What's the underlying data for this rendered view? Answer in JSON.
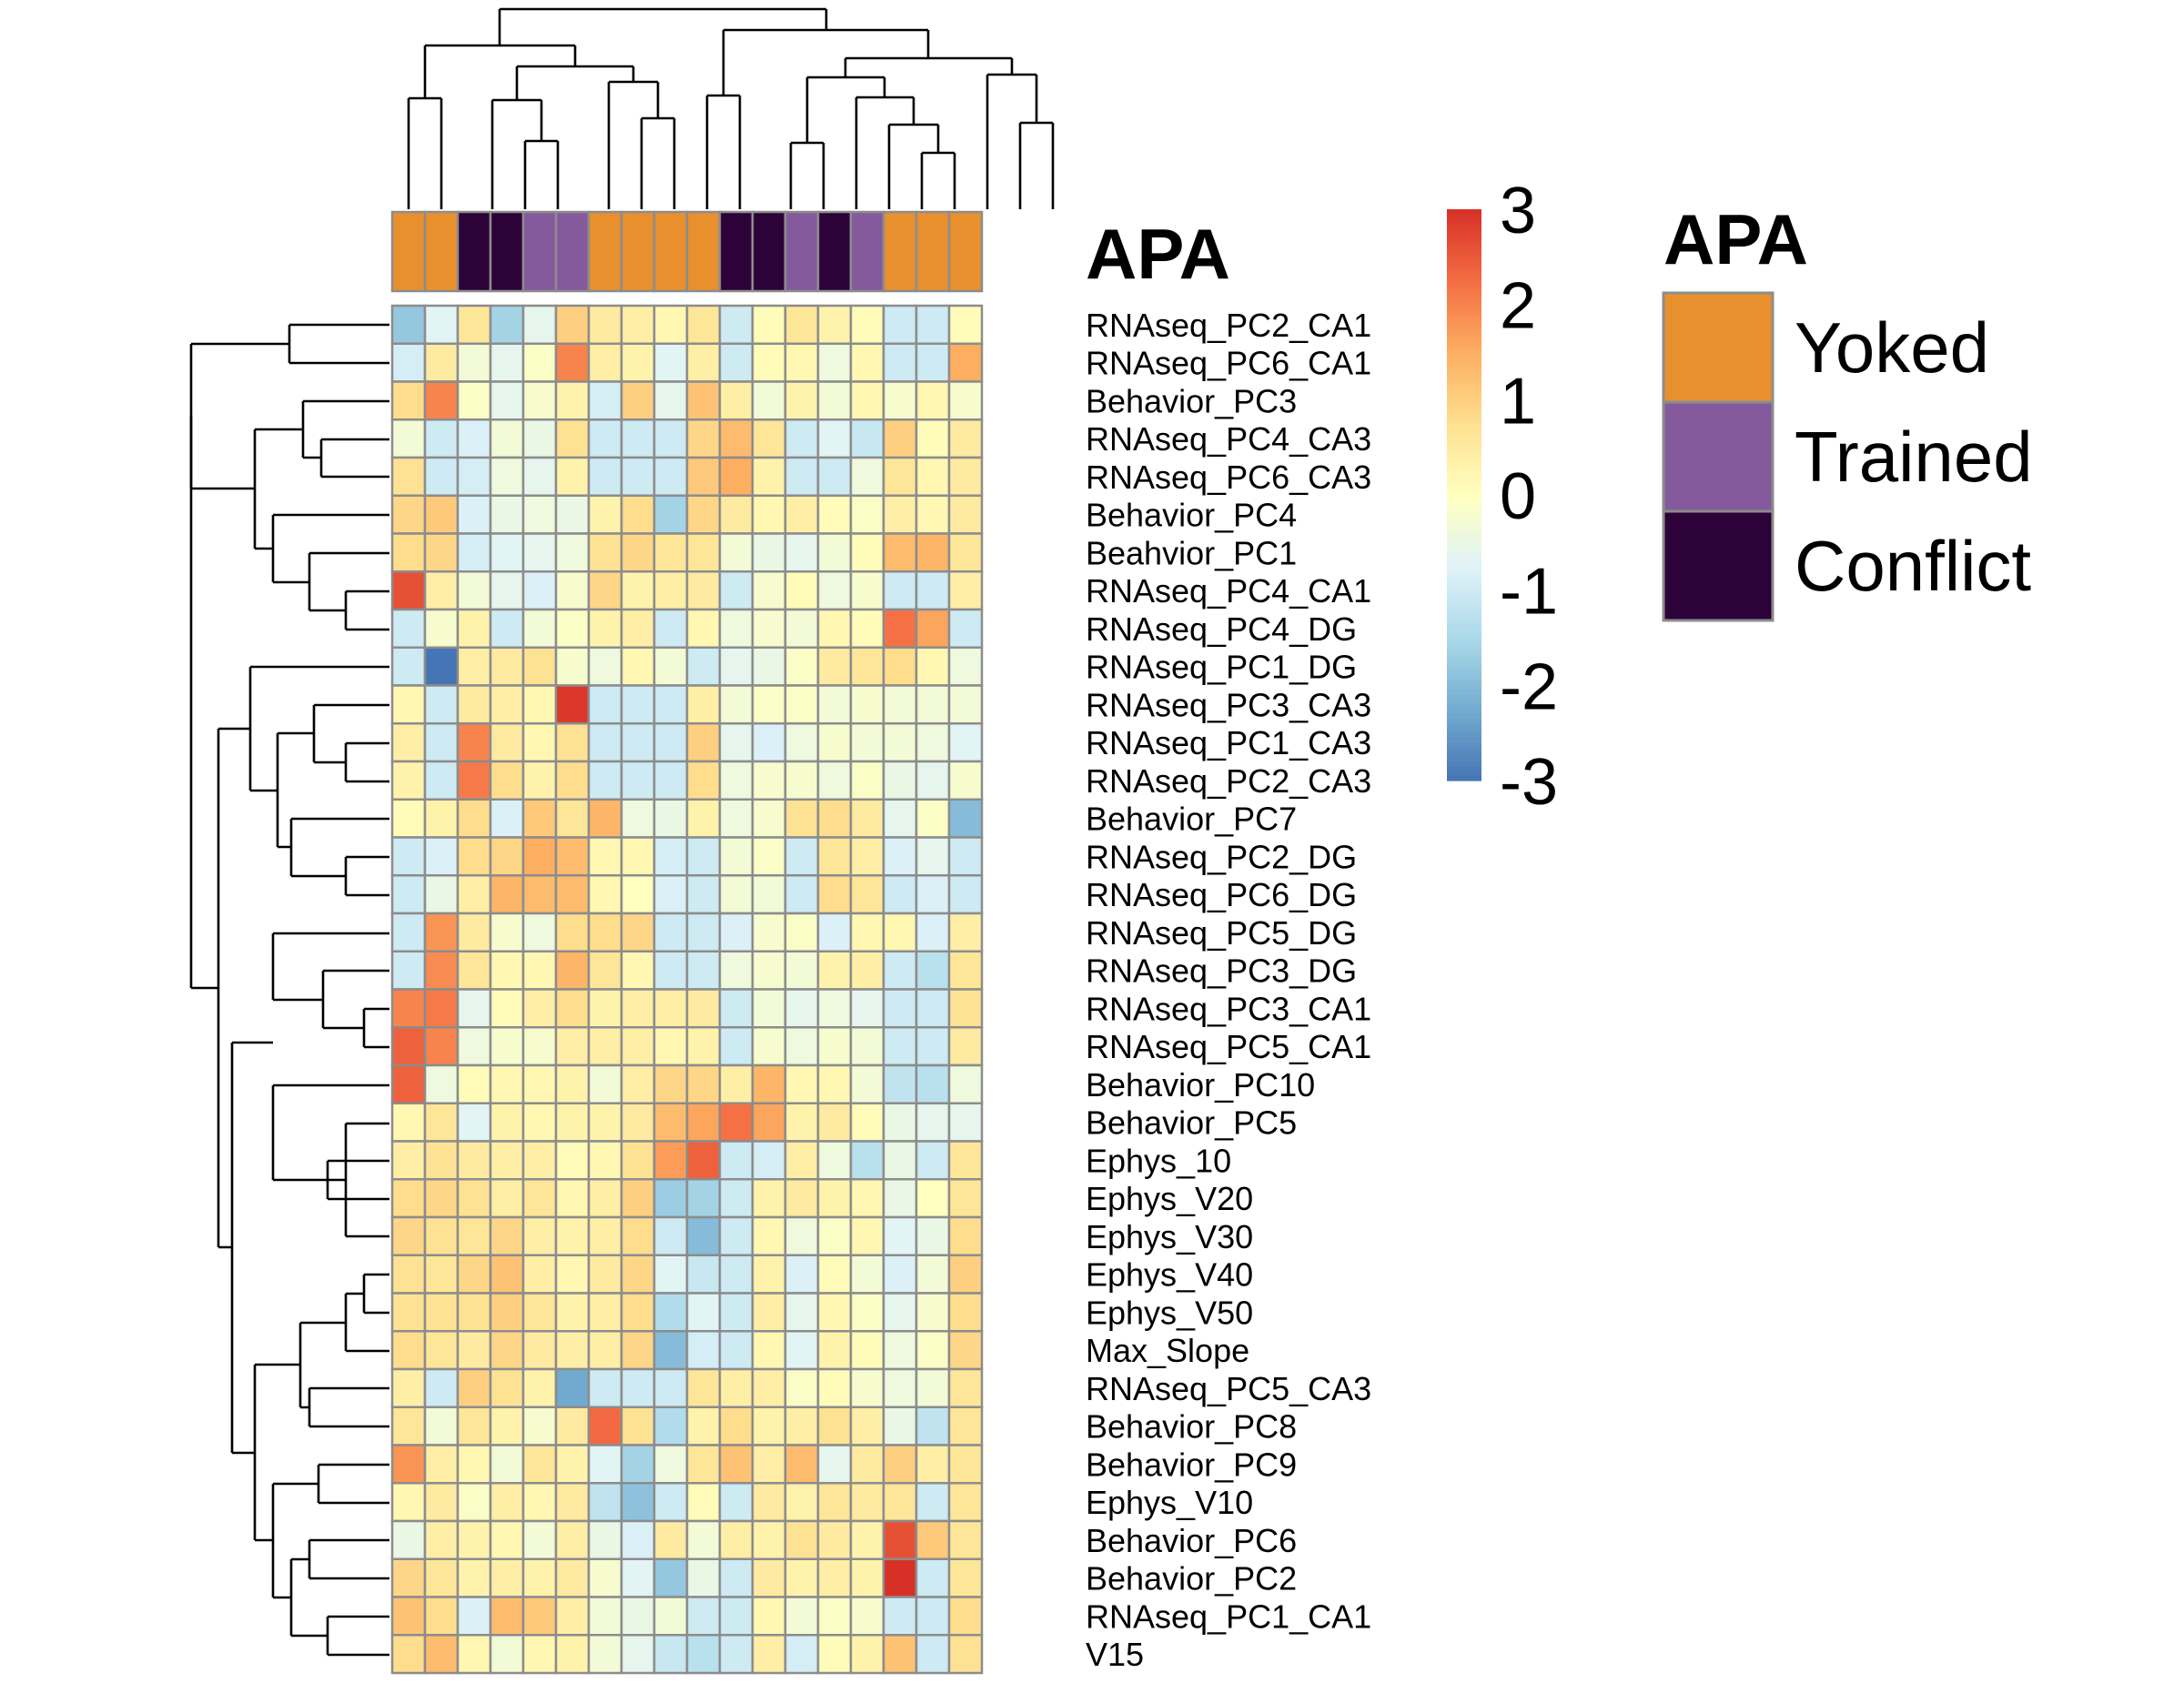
{
  "chart_data": {
    "type": "heatmap",
    "title": "",
    "annotation": {
      "name": "APA",
      "groups": [
        "Yoked",
        "Yoked",
        "Conflict",
        "Conflict",
        "Trained",
        "Trained",
        "Yoked",
        "Yoked",
        "Yoked",
        "Yoked",
        "Conflict",
        "Conflict",
        "Trained",
        "Conflict",
        "Trained",
        "Yoked",
        "Yoked",
        "Yoked"
      ]
    },
    "legend": {
      "title": "APA",
      "items": [
        {
          "label": "Yoked",
          "color": "#E8902E"
        },
        {
          "label": "Trained",
          "color": "#855A9C"
        },
        {
          "label": "Conflict",
          "color": "#2C0238"
        }
      ]
    },
    "color_scale": {
      "min": -3,
      "max": 3,
      "ticks": [
        "3",
        "2",
        "1",
        "0",
        "-1",
        "-2",
        "-3"
      ],
      "tick_values": [
        3,
        2,
        1,
        0,
        -1,
        -2,
        -3
      ],
      "palette": [
        "#4575B4",
        "#74ADD1",
        "#ABD9E9",
        "#E0F3F8",
        "#FFFFBF",
        "#FEE090",
        "#FDAE61",
        "#F46D43",
        "#D73027"
      ]
    },
    "rows": [
      "RNAseq_PC2_CA1",
      "RNAseq_PC6_CA1",
      "Behavior_PC3",
      "RNAseq_PC4_CA3",
      "RNAseq_PC6_CA3",
      "Behavior_PC4",
      "Beahvior_PC1",
      "RNAseq_PC4_CA1",
      "RNAseq_PC4_DG",
      "RNAseq_PC1_DG",
      "RNAseq_PC3_CA3",
      "RNAseq_PC1_CA3",
      "RNAseq_PC2_CA3",
      "Behavior_PC7",
      "RNAseq_PC2_DG",
      "RNAseq_PC6_DG",
      "RNAseq_PC5_DG",
      "RNAseq_PC3_DG",
      "RNAseq_PC3_CA1",
      "RNAseq_PC5_CA1",
      "Behavior_PC10",
      "Behavior_PC5",
      "Ephys_10",
      "Ephys_V20",
      "Ephys_V30",
      "Ephys_V40",
      "Ephys_V50",
      "Max_Slope",
      "RNAseq_PC5_CA3",
      "Behavior_PC8",
      "Behavior_PC9",
      "Ephys_V10",
      "Behavior_PC6",
      "Behavior_PC2",
      "RNAseq_PC1_CA1",
      "V15"
    ],
    "values": [
      [
        -1.8,
        -0.7,
        0.6,
        -1.6,
        -0.6,
        1.0,
        0.5,
        0.4,
        0.2,
        0.6,
        -1.0,
        0.1,
        0.6,
        0.3,
        0.1,
        -1.0,
        -1.0,
        0.1
      ],
      [
        -0.9,
        0.5,
        -0.3,
        -0.6,
        -0.1,
        2.0,
        0.4,
        0.3,
        -0.7,
        0.4,
        -1.0,
        0.1,
        0.2,
        -0.4,
        0.2,
        -1.0,
        -1.0,
        1.5
      ],
      [
        0.8,
        2.0,
        -0.1,
        -0.6,
        -0.2,
        0.3,
        -0.9,
        1.0,
        -0.6,
        1.2,
        0.4,
        -0.3,
        0.3,
        -0.3,
        0.2,
        -0.2,
        0.2,
        -0.2
      ],
      [
        -0.3,
        -1.0,
        -0.8,
        -0.3,
        -0.5,
        0.7,
        -1.0,
        -1.0,
        -1.0,
        0.9,
        1.3,
        0.6,
        -1.0,
        -0.7,
        -1.1,
        1.0,
        0.1,
        0.5
      ],
      [
        0.7,
        -1.0,
        -0.9,
        -0.4,
        -0.6,
        0.3,
        -1.0,
        -1.0,
        -1.0,
        1.1,
        1.5,
        0.3,
        -1.0,
        -1.0,
        -0.4,
        0.6,
        0.2,
        0.5
      ],
      [
        0.9,
        1.1,
        -0.8,
        -0.5,
        -0.4,
        -0.5,
        0.3,
        0.8,
        -1.6,
        0.9,
        0.5,
        0.2,
        0.4,
        0.1,
        -0.1,
        0.4,
        0.2,
        0.5
      ],
      [
        0.8,
        0.9,
        -0.9,
        -0.7,
        -0.6,
        -0.4,
        0.7,
        0.9,
        0.6,
        0.6,
        -0.3,
        -0.5,
        -0.6,
        -0.3,
        0.1,
        1.3,
        1.4,
        0.6
      ],
      [
        2.6,
        0.4,
        -0.3,
        -0.6,
        -0.8,
        -0.2,
        0.9,
        0.3,
        0.4,
        0.5,
        -1.0,
        -0.2,
        0.1,
        -0.4,
        -0.2,
        -1.0,
        -1.0,
        0.4
      ],
      [
        -1.0,
        -0.2,
        0.3,
        -1.0,
        -0.3,
        -0.1,
        0.3,
        0.4,
        -1.0,
        0.2,
        -0.4,
        -0.2,
        -0.3,
        0.2,
        0.1,
        2.2,
        1.6,
        -1.0
      ],
      [
        -1.0,
        -3.0,
        0.4,
        0.5,
        0.7,
        -0.2,
        -0.4,
        0.2,
        -0.3,
        -1.0,
        -0.6,
        -0.5,
        -0.1,
        0.5,
        0.6,
        0.8,
        0.2,
        -0.4
      ],
      [
        0.2,
        -1.0,
        0.5,
        0.4,
        0.2,
        2.9,
        -1.0,
        -1.0,
        -1.0,
        0.4,
        -0.3,
        -0.1,
        -0.1,
        -0.3,
        -0.2,
        -0.3,
        -0.3,
        -0.3
      ],
      [
        0.4,
        -1.0,
        2.0,
        0.5,
        0.2,
        0.7,
        -1.0,
        -1.0,
        -1.0,
        1.0,
        -0.6,
        -0.8,
        -0.4,
        -0.2,
        -0.3,
        -0.3,
        -0.4,
        -0.7
      ],
      [
        0.3,
        -1.0,
        2.1,
        0.8,
        0.3,
        0.8,
        -1.0,
        -1.0,
        -1.0,
        0.8,
        -0.4,
        -0.2,
        -0.2,
        -0.4,
        -0.1,
        -0.5,
        -0.6,
        -0.2
      ],
      [
        0.1,
        0.3,
        0.8,
        -0.8,
        1.1,
        0.6,
        1.4,
        -0.4,
        -0.5,
        0.3,
        -0.4,
        -0.2,
        0.7,
        0.8,
        0.5,
        -0.6,
        -0.1,
        -2.0
      ],
      [
        -1.0,
        -0.8,
        0.8,
        0.9,
        1.5,
        1.3,
        0.2,
        0.2,
        -0.9,
        -1.0,
        -0.3,
        -0.1,
        -1.0,
        0.6,
        0.4,
        -0.8,
        -0.6,
        -1.0
      ],
      [
        -1.0,
        -0.5,
        0.4,
        1.4,
        1.3,
        1.3,
        0.2,
        0.0,
        -0.8,
        -1.0,
        -0.3,
        -0.3,
        -1.0,
        0.8,
        0.6,
        -1.0,
        -0.8,
        -1.0
      ],
      [
        -1.0,
        1.8,
        0.5,
        -0.2,
        -0.4,
        0.8,
        0.8,
        0.9,
        -1.0,
        -1.0,
        -0.8,
        -0.2,
        -0.1,
        -0.8,
        0.2,
        0.2,
        -0.8,
        0.4
      ],
      [
        -1.0,
        1.9,
        0.6,
        0.2,
        0.2,
        1.4,
        0.6,
        0.2,
        -1.0,
        -1.0,
        -0.4,
        -0.2,
        -0.3,
        0.3,
        0.4,
        -1.0,
        -1.3,
        0.6
      ],
      [
        2.0,
        2.1,
        -0.6,
        0.1,
        0.4,
        0.8,
        0.3,
        0.4,
        0.4,
        0.5,
        -1.0,
        -0.3,
        -0.6,
        -0.4,
        -0.6,
        -1.0,
        -1.0,
        0.7
      ],
      [
        2.4,
        2.0,
        -0.4,
        -0.2,
        -0.2,
        0.4,
        0.4,
        0.4,
        0.2,
        0.3,
        -1.0,
        -0.2,
        -0.4,
        -0.2,
        -0.3,
        -1.0,
        -1.0,
        0.5
      ],
      [
        2.4,
        -0.4,
        0.1,
        0.2,
        0.2,
        0.3,
        -0.3,
        0.4,
        0.9,
        0.9,
        0.4,
        1.4,
        0.2,
        0.2,
        -0.3,
        -1.2,
        -1.3,
        -0.4
      ],
      [
        0.2,
        0.6,
        -0.7,
        0.3,
        0.2,
        0.3,
        0.3,
        0.5,
        1.3,
        1.6,
        2.2,
        1.6,
        0.3,
        0.5,
        0.1,
        -0.5,
        -0.6,
        -0.6
      ],
      [
        0.4,
        0.7,
        0.5,
        0.4,
        0.4,
        0.1,
        0.2,
        0.7,
        1.7,
        2.4,
        -1.0,
        -0.9,
        0.4,
        -0.4,
        -1.3,
        -0.5,
        -1.0,
        0.6
      ],
      [
        0.8,
        0.9,
        0.7,
        0.4,
        0.6,
        0.2,
        0.4,
        1.0,
        -1.7,
        -1.6,
        -1.0,
        0.3,
        0.5,
        0.3,
        0.2,
        -0.5,
        0.0,
        0.6
      ],
      [
        0.9,
        0.7,
        0.6,
        0.9,
        0.4,
        0.3,
        0.4,
        0.8,
        -1.0,
        -2.0,
        -1.0,
        0.2,
        -0.4,
        -0.1,
        0.2,
        -0.7,
        -0.5,
        0.8
      ],
      [
        0.7,
        0.6,
        0.9,
        1.2,
        0.4,
        0.2,
        0.5,
        0.9,
        -0.7,
        -1.1,
        -1.0,
        0.3,
        -0.8,
        0.1,
        -0.3,
        -0.8,
        -0.3,
        1.0
      ],
      [
        0.7,
        0.7,
        0.7,
        1.0,
        0.6,
        0.3,
        0.4,
        0.8,
        -1.4,
        -0.7,
        -1.0,
        0.4,
        -0.6,
        0.2,
        -0.1,
        -0.6,
        -0.2,
        0.8
      ],
      [
        0.8,
        0.6,
        0.5,
        0.9,
        0.5,
        0.4,
        0.4,
        0.9,
        -2.0,
        -0.9,
        -1.0,
        0.2,
        -0.7,
        0.3,
        0.1,
        -0.4,
        -0.1,
        0.9
      ],
      [
        0.4,
        -1.0,
        1.0,
        0.7,
        0.3,
        -2.3,
        -1.0,
        -1.0,
        -1.0,
        0.6,
        0.4,
        0.4,
        -0.1,
        0.1,
        -0.2,
        -0.4,
        -0.3,
        0.6
      ],
      [
        0.6,
        -0.3,
        0.6,
        0.3,
        -0.2,
        0.5,
        2.3,
        0.7,
        -1.4,
        0.3,
        0.8,
        0.3,
        0.4,
        0.7,
        0.4,
        -0.5,
        -1.2,
        0.6
      ],
      [
        1.8,
        0.4,
        0.2,
        -0.3,
        0.6,
        0.3,
        -0.7,
        -1.6,
        -0.4,
        0.6,
        1.2,
        0.4,
        1.3,
        -0.6,
        0.5,
        1.0,
        0.4,
        0.6
      ],
      [
        0.2,
        0.5,
        -0.1,
        0.4,
        0.2,
        0.5,
        -1.2,
        -1.9,
        -1.0,
        0.1,
        -1.0,
        0.5,
        0.3,
        0.6,
        0.5,
        0.6,
        -1.0,
        0.6
      ],
      [
        -0.5,
        0.4,
        0.3,
        0.2,
        -0.3,
        0.4,
        -0.5,
        -0.8,
        0.5,
        -0.3,
        0.4,
        0.3,
        0.7,
        0.5,
        0.3,
        2.6,
        1.1,
        0.6
      ],
      [
        0.9,
        0.6,
        0.3,
        0.4,
        0.3,
        0.5,
        -0.2,
        -0.7,
        -1.8,
        -0.5,
        -1.0,
        0.5,
        0.3,
        0.4,
        0.3,
        3.0,
        -1.0,
        0.6
      ],
      [
        1.2,
        0.8,
        -0.8,
        1.3,
        1.1,
        0.4,
        -0.3,
        -0.5,
        -0.3,
        -1.0,
        -1.0,
        0.2,
        -0.3,
        -0.1,
        -0.2,
        -1.0,
        -1.0,
        0.8
      ],
      [
        0.8,
        1.3,
        0.2,
        -0.3,
        0.2,
        0.3,
        -0.3,
        -0.6,
        -1.1,
        -1.3,
        -1.0,
        0.4,
        -0.9,
        0.1,
        0.3,
        1.2,
        -1.0,
        0.7
      ]
    ]
  }
}
